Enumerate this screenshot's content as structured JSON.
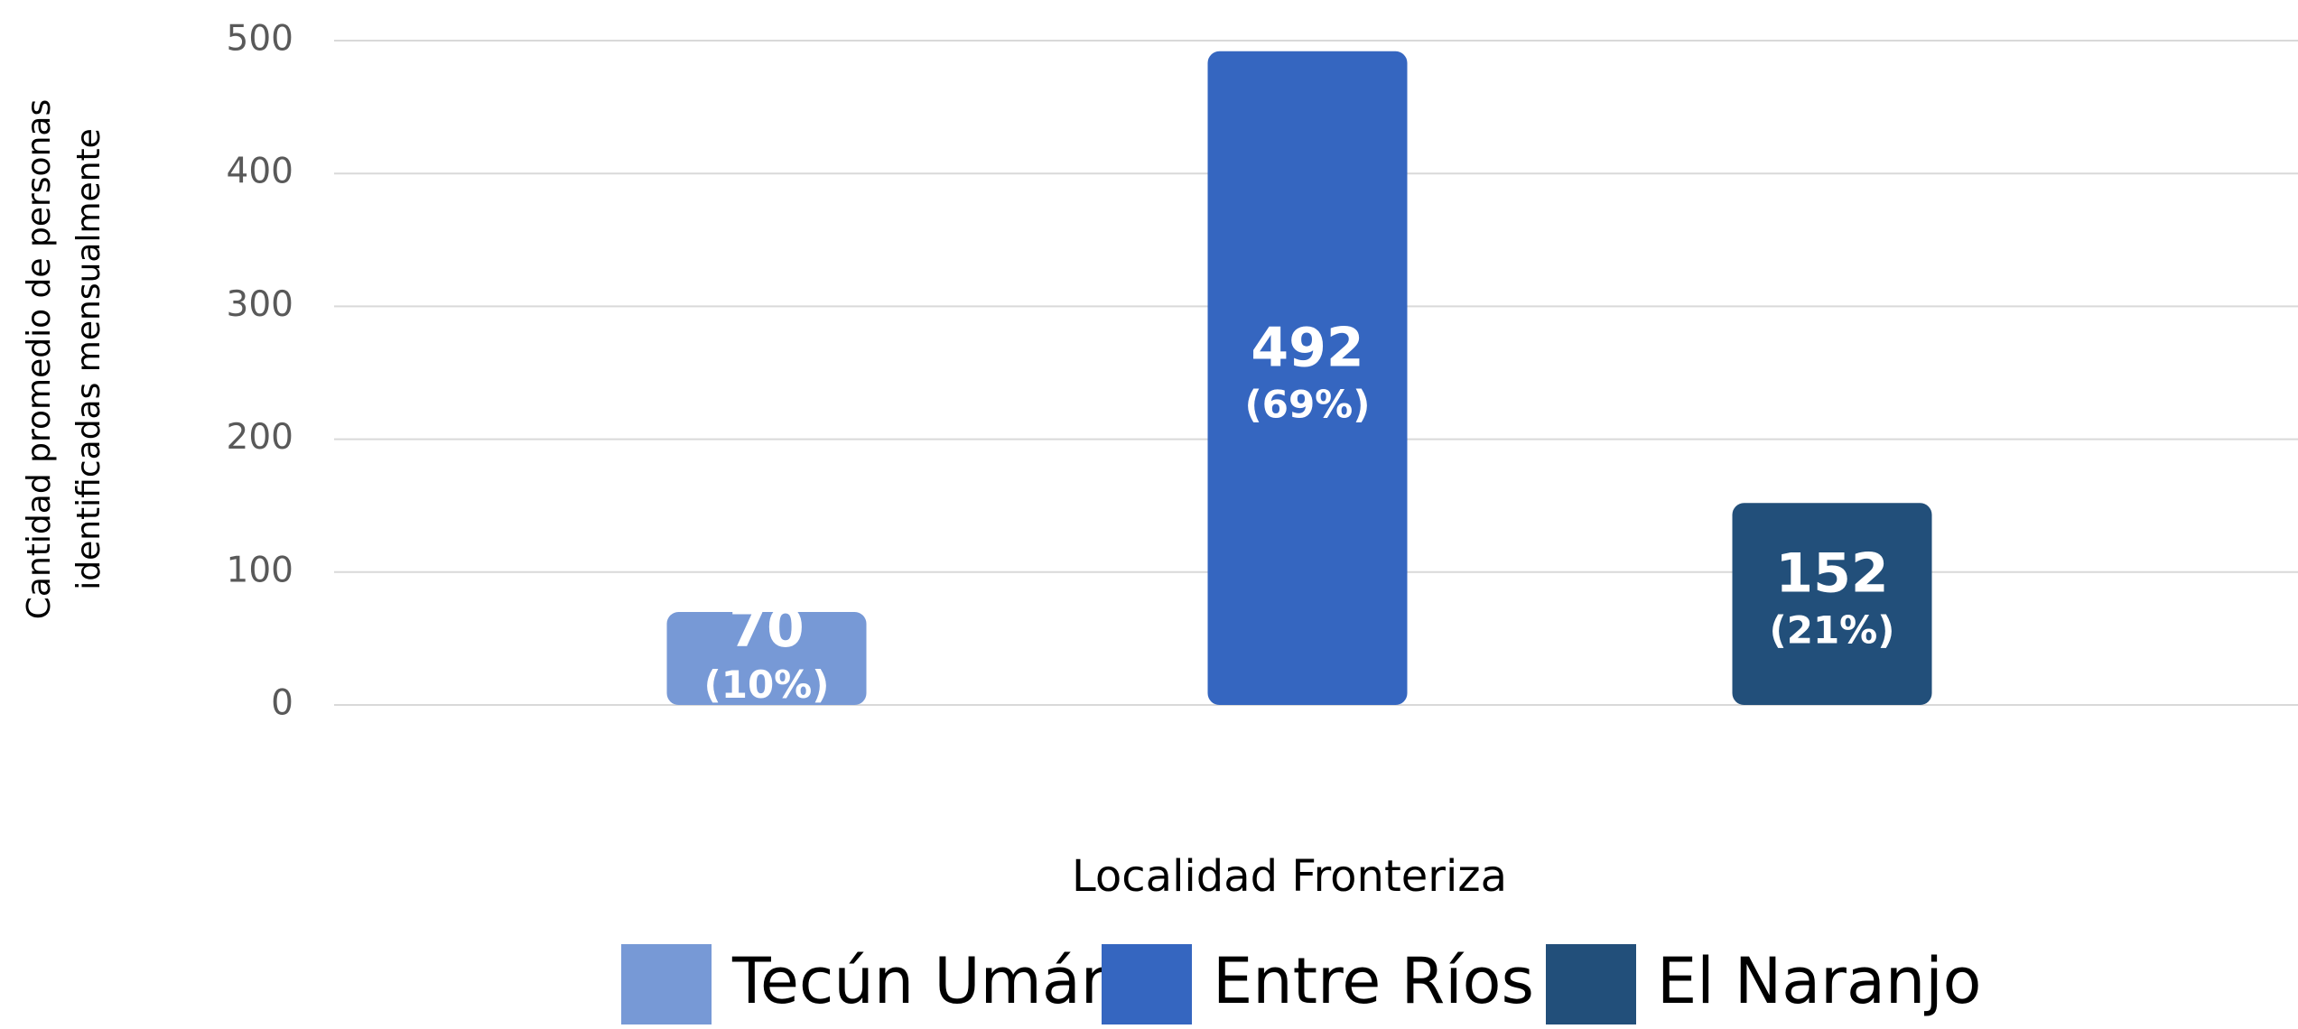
{
  "chart_data": {
    "type": "bar",
    "ylabel_lines": [
      "Cantidad promedio de personas",
      "identificadas mensualmente"
    ],
    "xlabel": "Localidad Fronteriza",
    "series": [
      {
        "name": "Tecún Umán",
        "color": "#7799d6",
        "values": [
          70
        ],
        "share_labels": [
          "(10%)"
        ]
      },
      {
        "name": "Entre Ríos",
        "color": "#3566c0",
        "values": [
          492
        ],
        "share_labels": [
          "(69%)"
        ]
      },
      {
        "name": "El Naranjo",
        "color": "#224f7a",
        "values": [
          152
        ],
        "share_labels": [
          "(21%)"
        ]
      }
    ],
    "ylim": [
      0,
      500
    ],
    "yticks": [
      0,
      100,
      200,
      300,
      400,
      500
    ],
    "grid": true,
    "legend": "bottom"
  }
}
